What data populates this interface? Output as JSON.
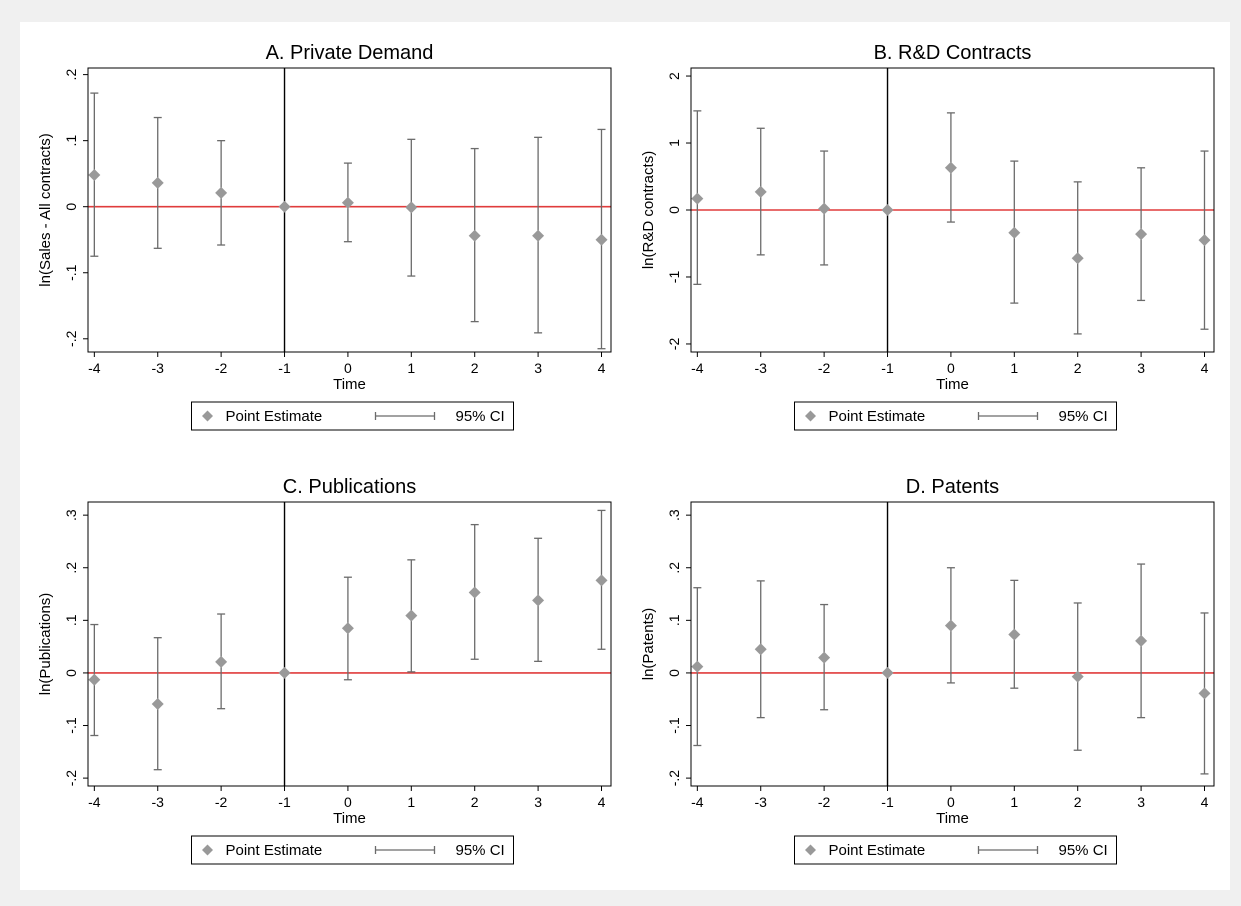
{
  "legend": {
    "point_label": "Point Estimate",
    "ci_label": "95% CI"
  },
  "colors": {
    "point": "#999999",
    "ci": "#6b6b6b",
    "zero_line": "#e03c3c",
    "event_line": "#000000",
    "frame": "#000000"
  },
  "chart_data": [
    {
      "type": "scatter",
      "title": "A. Private Demand",
      "xlabel": "Time",
      "ylabel": "ln(Sales - All contracts)",
      "x": [
        -4,
        -3,
        -2,
        -1,
        0,
        1,
        2,
        3,
        4
      ],
      "xticks": [
        -4,
        -3,
        -2,
        -1,
        0,
        1,
        2,
        3,
        4
      ],
      "xtick_labels": [
        "-4",
        "-3",
        "-2",
        "-1",
        "0",
        "1",
        "2",
        "3",
        "4"
      ],
      "yticks": [
        -0.2,
        -0.1,
        0,
        0.1,
        0.2
      ],
      "ytick_labels": [
        "-.2",
        "-.1",
        "0",
        ".1",
        ".2"
      ],
      "ylim": [
        -0.22,
        0.21
      ],
      "xlim": [
        -4.1,
        4.15
      ],
      "series": [
        {
          "name": "Point Estimate",
          "values": [
            0.048,
            0.036,
            0.021,
            0,
            0.006,
            -0.001,
            -0.044,
            -0.044,
            -0.05
          ]
        },
        {
          "name": "95% CI",
          "lower": [
            -0.075,
            -0.063,
            -0.058,
            0,
            -0.053,
            -0.105,
            -0.174,
            -0.191,
            -0.215
          ],
          "upper": [
            0.172,
            0.135,
            0.1,
            0,
            0.066,
            0.102,
            0.088,
            0.105,
            0.117
          ]
        }
      ],
      "event_line_x": -1,
      "legend_position": "bottom-center",
      "grid": false
    },
    {
      "type": "scatter",
      "title": "B. R&D Contracts",
      "xlabel": "Time",
      "ylabel": "ln(R&D contracts)",
      "x": [
        -4,
        -3,
        -2,
        -1,
        0,
        1,
        2,
        3,
        4
      ],
      "xticks": [
        -4,
        -3,
        -2,
        -1,
        0,
        1,
        2,
        3,
        4
      ],
      "xtick_labels": [
        "-4",
        "-3",
        "-2",
        "-1",
        "0",
        "1",
        "2",
        "3",
        "4"
      ],
      "yticks": [
        -2,
        -1,
        0,
        1,
        2
      ],
      "ytick_labels": [
        "-2",
        "-1",
        "0",
        "1",
        "2"
      ],
      "ylim": [
        -2.12,
        2.12
      ],
      "xlim": [
        -4.1,
        4.15
      ],
      "series": [
        {
          "name": "Point Estimate",
          "values": [
            0.17,
            0.27,
            0.02,
            0,
            0.63,
            -0.34,
            -0.72,
            -0.36,
            -0.45
          ]
        },
        {
          "name": "95% CI",
          "lower": [
            -1.11,
            -0.67,
            -0.82,
            0,
            -0.18,
            -1.39,
            -1.85,
            -1.35,
            -1.78
          ],
          "upper": [
            1.48,
            1.22,
            0.88,
            0,
            1.45,
            0.73,
            0.42,
            0.63,
            0.88
          ]
        }
      ],
      "event_line_x": -1,
      "legend_position": "bottom-center",
      "grid": false
    },
    {
      "type": "scatter",
      "title": "C. Publications",
      "xlabel": "Time",
      "ylabel": "ln(Publications)",
      "x": [
        -4,
        -3,
        -2,
        -1,
        0,
        1,
        2,
        3,
        4
      ],
      "xticks": [
        -4,
        -3,
        -2,
        -1,
        0,
        1,
        2,
        3,
        4
      ],
      "xtick_labels": [
        "-4",
        "-3",
        "-2",
        "-1",
        "0",
        "1",
        "2",
        "3",
        "4"
      ],
      "yticks": [
        -0.2,
        -0.1,
        0,
        0.1,
        0.2,
        0.3
      ],
      "ytick_labels": [
        "-.2",
        "-.1",
        "0",
        ".1",
        ".2",
        ".3"
      ],
      "ylim": [
        -0.215,
        0.325
      ],
      "xlim": [
        -4.1,
        4.15
      ],
      "series": [
        {
          "name": "Point Estimate",
          "values": [
            -0.013,
            -0.059,
            0.021,
            0,
            0.085,
            0.109,
            0.153,
            0.138,
            0.176
          ]
        },
        {
          "name": "95% CI",
          "lower": [
            -0.119,
            -0.184,
            -0.068,
            0,
            -0.013,
            0.002,
            0.026,
            0.022,
            0.045
          ],
          "upper": [
            0.092,
            0.067,
            0.112,
            0,
            0.182,
            0.215,
            0.282,
            0.256,
            0.309
          ]
        }
      ],
      "event_line_x": -1,
      "legend_position": "bottom-center",
      "grid": false
    },
    {
      "type": "scatter",
      "title": "D. Patents",
      "xlabel": "Time",
      "ylabel": "ln(Patents)",
      "x": [
        -4,
        -3,
        -2,
        -1,
        0,
        1,
        2,
        3,
        4
      ],
      "xticks": [
        -4,
        -3,
        -2,
        -1,
        0,
        1,
        2,
        3,
        4
      ],
      "xtick_labels": [
        "-4",
        "-3",
        "-2",
        "-1",
        "0",
        "1",
        "2",
        "3",
        "4"
      ],
      "yticks": [
        -0.2,
        -0.1,
        0,
        0.1,
        0.2,
        0.3
      ],
      "ytick_labels": [
        "-.2",
        "-.1",
        "0",
        ".1",
        ".2",
        ".3"
      ],
      "ylim": [
        -0.215,
        0.325
      ],
      "xlim": [
        -4.1,
        4.15
      ],
      "series": [
        {
          "name": "Point Estimate",
          "values": [
            0.012,
            0.045,
            0.029,
            0,
            0.09,
            0.073,
            -0.007,
            0.061,
            -0.039
          ]
        },
        {
          "name": "95% CI",
          "lower": [
            -0.138,
            -0.085,
            -0.07,
            0,
            -0.019,
            -0.029,
            -0.147,
            -0.085,
            -0.192
          ],
          "upper": [
            0.162,
            0.175,
            0.13,
            0,
            0.2,
            0.176,
            0.133,
            0.207,
            0.114
          ]
        }
      ],
      "event_line_x": -1,
      "legend_position": "bottom-center",
      "grid": false
    }
  ]
}
